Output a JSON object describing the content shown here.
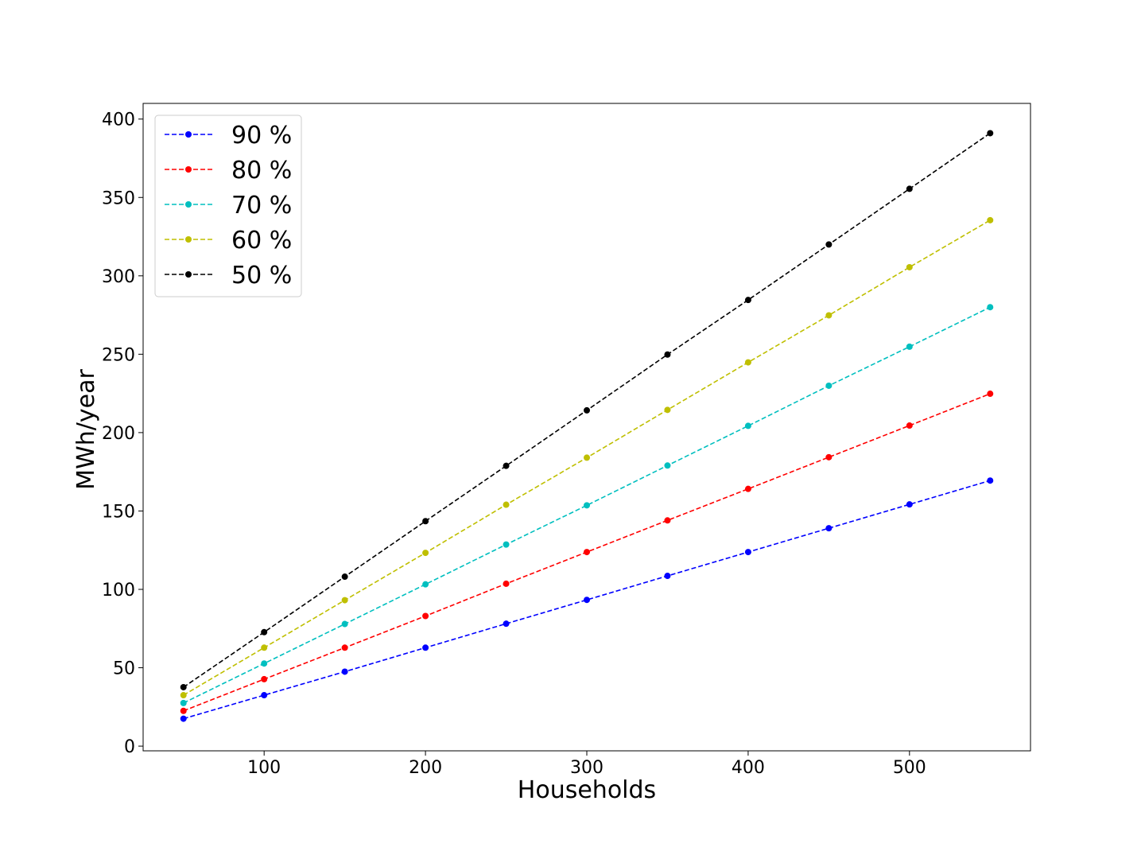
{
  "chart_data": {
    "type": "line",
    "title": "",
    "xlabel": "Households",
    "ylabel": "MWh/year",
    "x": [
      50,
      100,
      150,
      200,
      250,
      300,
      350,
      400,
      450,
      500,
      550
    ],
    "xlim": [
      25,
      575
    ],
    "ylim": [
      -3,
      410
    ],
    "xticks": [
      100,
      200,
      300,
      400,
      500
    ],
    "yticks": [
      0,
      50,
      100,
      150,
      200,
      250,
      300,
      350,
      400
    ],
    "grid": false,
    "legend_position": "top-left",
    "line_style": "dashed",
    "marker": "circle",
    "series": [
      {
        "name": "90 %",
        "color": "#0000ff",
        "values": [
          17.5,
          32.5,
          47.5,
          62.8,
          78.1,
          93.3,
          108.6,
          123.8,
          139.0,
          154.2,
          169.4
        ]
      },
      {
        "name": "80 %",
        "color": "#ff0000",
        "values": [
          22.5,
          42.7,
          62.8,
          83.0,
          103.6,
          123.8,
          144.0,
          164.1,
          184.3,
          204.5,
          224.8
        ]
      },
      {
        "name": "70 %",
        "color": "#00bfbf",
        "values": [
          27.5,
          52.7,
          77.9,
          103.2,
          128.6,
          153.6,
          179.0,
          204.3,
          229.9,
          254.8,
          280.0
        ]
      },
      {
        "name": "60 %",
        "color": "#bfbf00",
        "values": [
          32.5,
          62.8,
          93.1,
          123.3,
          154.0,
          184.0,
          214.5,
          244.8,
          274.8,
          305.5,
          335.5
        ]
      },
      {
        "name": "50 %",
        "color": "#000000",
        "values": [
          37.6,
          72.7,
          108.1,
          143.5,
          178.8,
          214.2,
          249.8,
          284.6,
          320.0,
          355.5,
          391.0
        ]
      }
    ]
  }
}
